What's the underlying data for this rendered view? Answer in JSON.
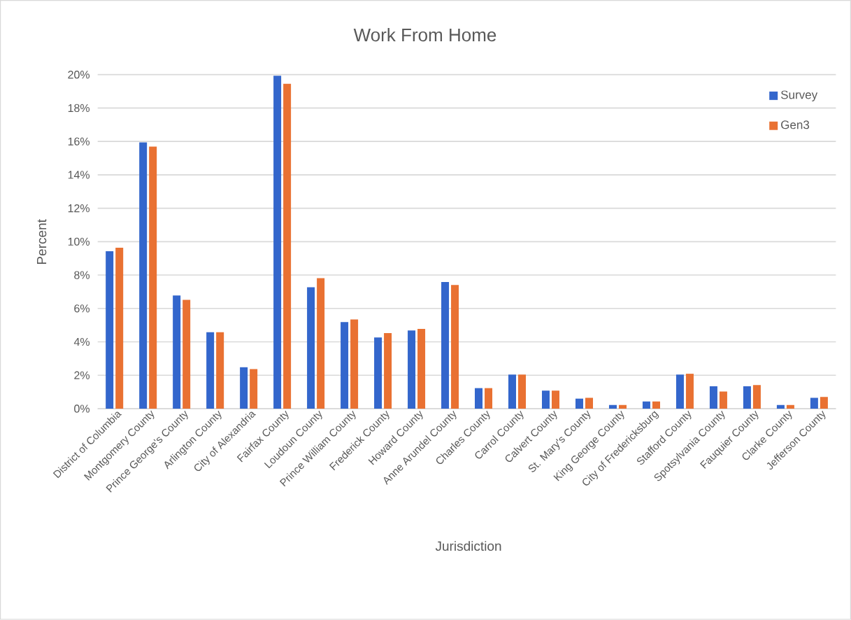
{
  "chart_data": {
    "type": "bar",
    "title": "Work From Home",
    "xlabel": "Jurisdiction",
    "ylabel": "Percent",
    "categories": [
      "District of Columbia",
      "Montgomery County",
      "Prince George's County",
      "Arlington County",
      "City of Alexandria",
      "Fairfax County",
      "Loudoun County",
      "Prince William County",
      "Frederick County",
      "Howard County",
      "Anne Arundel County",
      "Charles County",
      "Carrol County",
      "Calvert County",
      "St. Mary's County",
      "King George County",
      "City of Fredericksburg",
      "Stafford County",
      "Spotsylvania County",
      "Fauquier County",
      "Clarke County",
      "Jefferson County"
    ],
    "series": [
      {
        "name": "Survey",
        "color": "#3366cc",
        "values": [
          9.43,
          15.94,
          6.78,
          4.58,
          2.48,
          19.93,
          7.27,
          5.18,
          4.26,
          4.68,
          7.58,
          1.23,
          2.04,
          1.08,
          0.6,
          0.22,
          0.43,
          2.04,
          1.34,
          1.34,
          0.22,
          0.65
        ]
      },
      {
        "name": "Gen3",
        "color": "#e97132",
        "values": [
          9.64,
          15.69,
          6.51,
          4.58,
          2.37,
          19.45,
          7.81,
          5.34,
          4.52,
          4.78,
          7.41,
          1.23,
          2.04,
          1.08,
          0.65,
          0.22,
          0.43,
          2.09,
          1.03,
          1.41,
          0.22,
          0.7
        ]
      }
    ],
    "ylim": [
      0,
      20
    ],
    "yticks": [
      {
        "value": 0,
        "label": "0%"
      },
      {
        "value": 2,
        "label": "2%"
      },
      {
        "value": 4,
        "label": "4%"
      },
      {
        "value": 6,
        "label": "6%"
      },
      {
        "value": 8,
        "label": "8%"
      },
      {
        "value": 10,
        "label": "10%"
      },
      {
        "value": 12,
        "label": "12%"
      },
      {
        "value": 14,
        "label": "14%"
      },
      {
        "value": 16,
        "label": "16%"
      },
      {
        "value": 18,
        "label": "18%"
      },
      {
        "value": 20,
        "label": "20%"
      }
    ],
    "grid": "y",
    "legend": "top right"
  }
}
